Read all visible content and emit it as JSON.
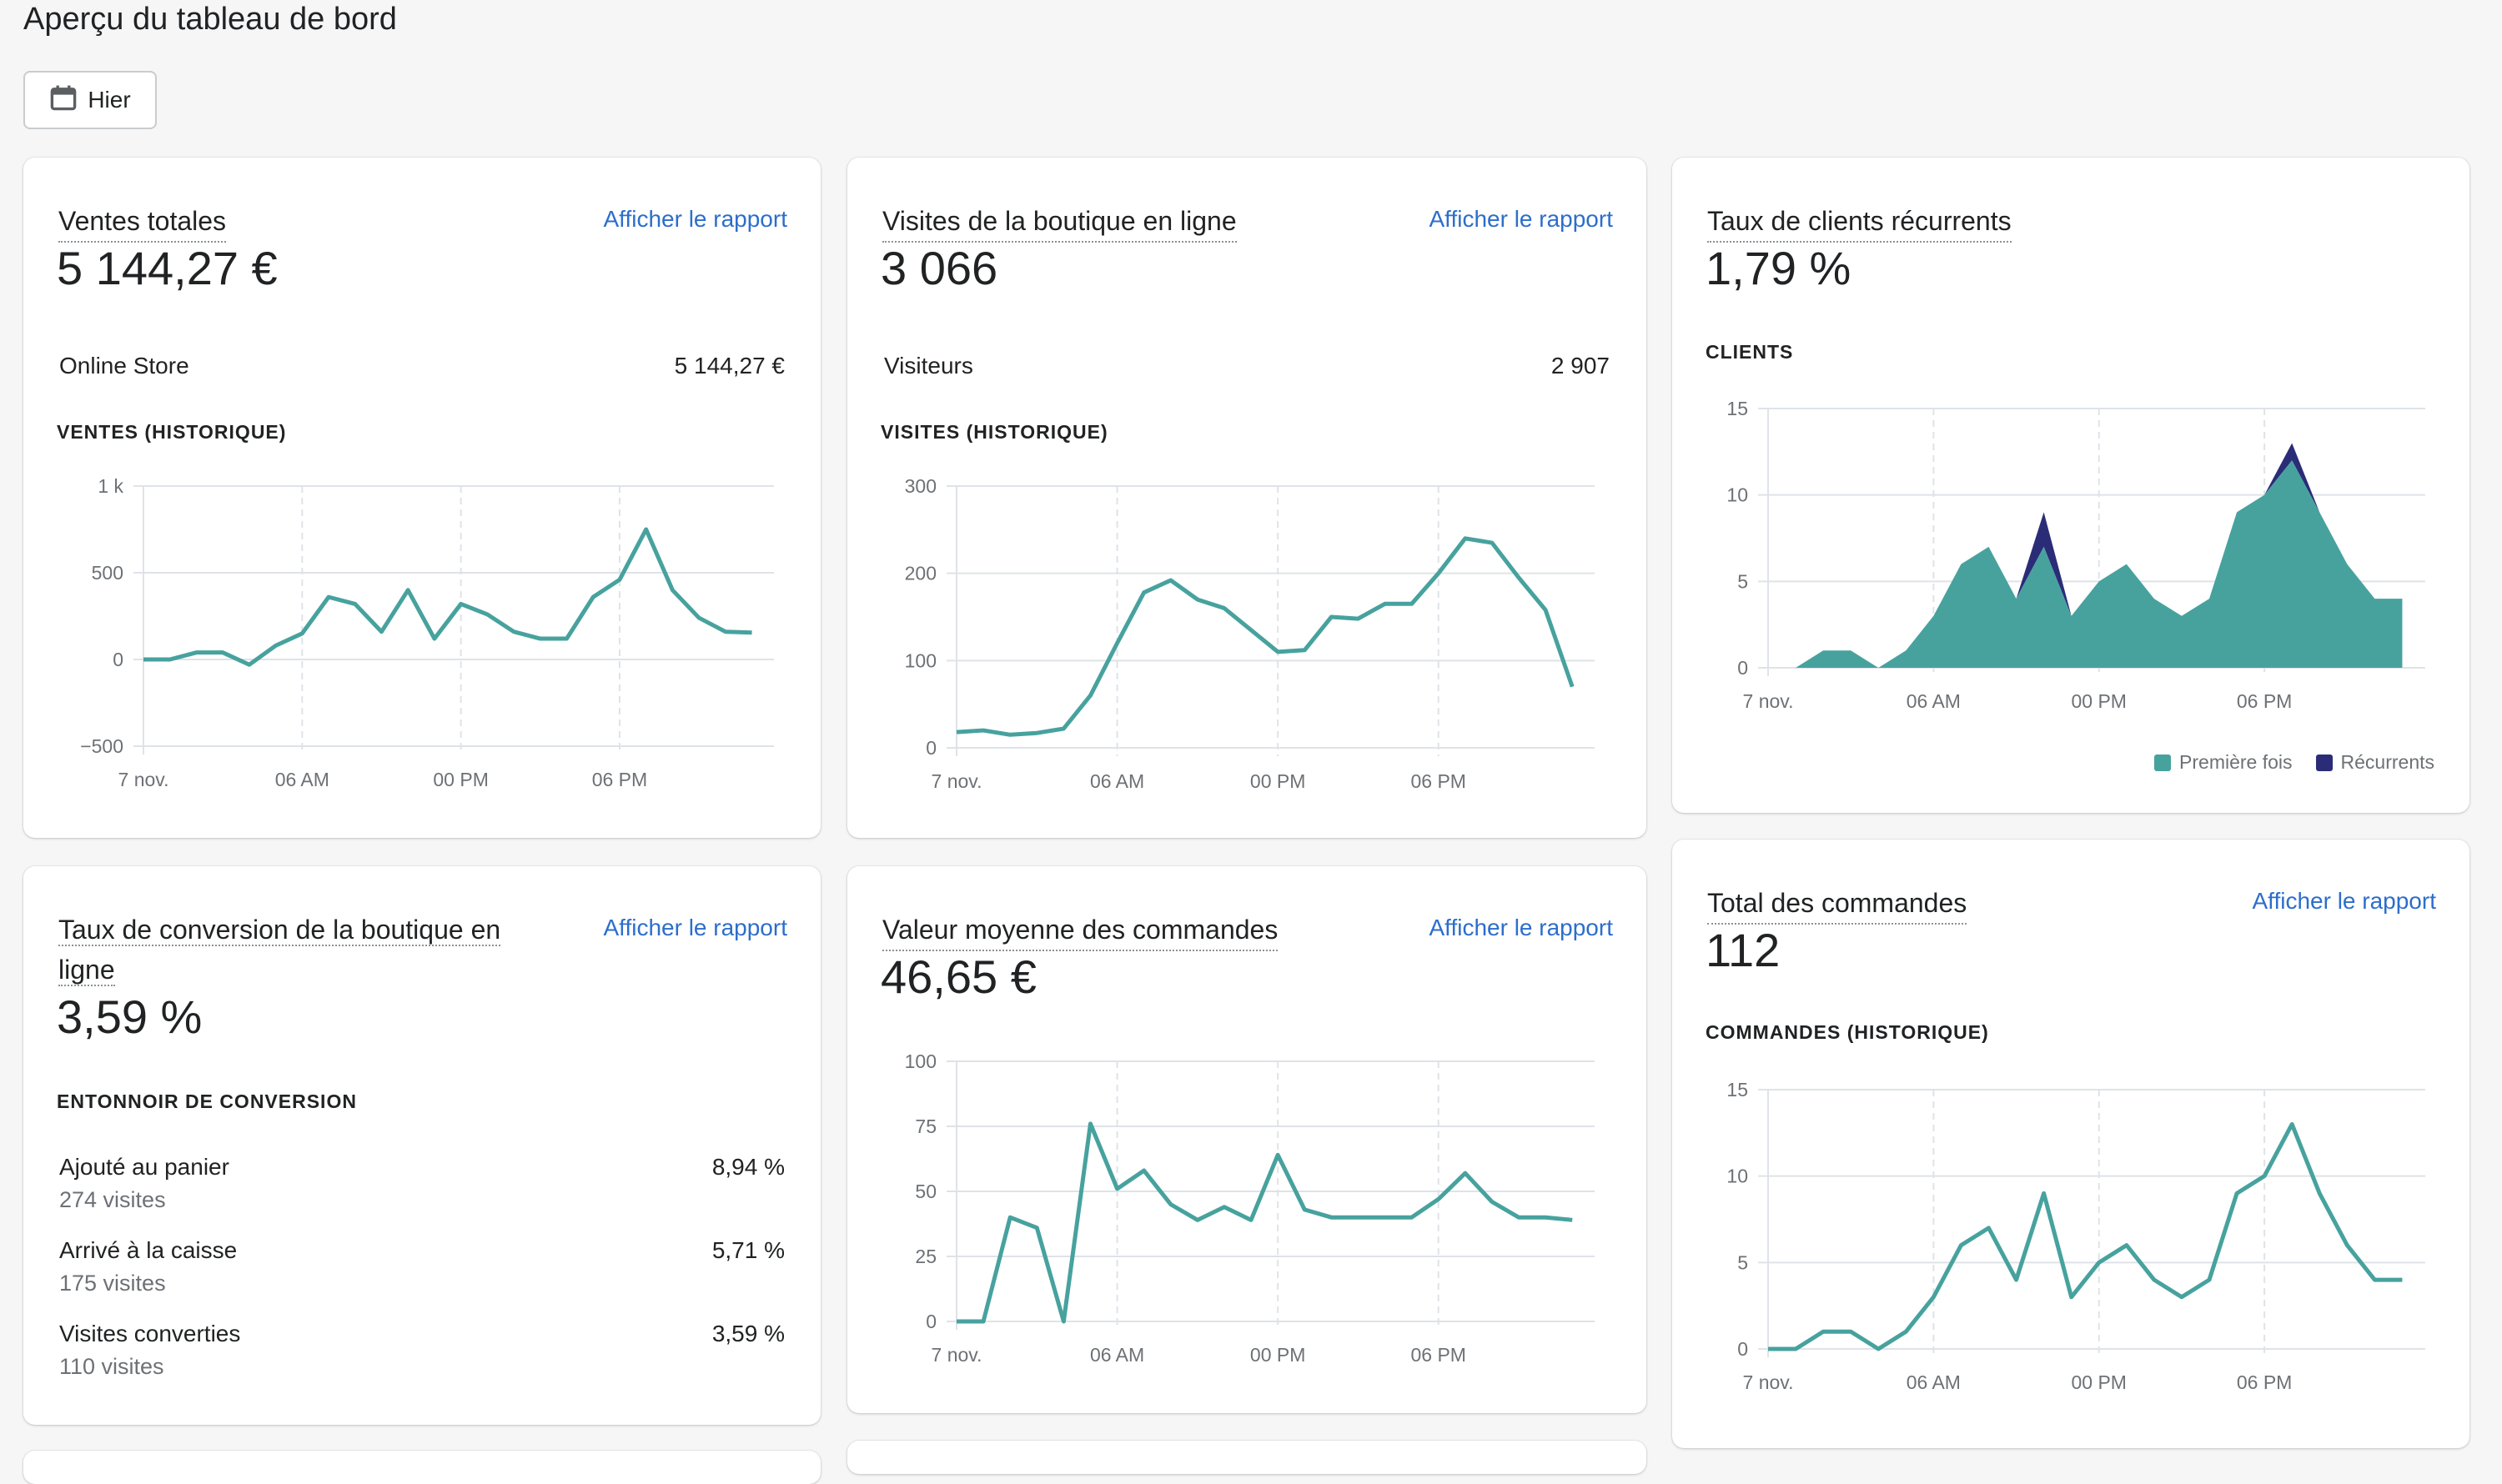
{
  "page": {
    "title": "Aperçu du tableau de bord"
  },
  "date_filter": {
    "label": "Hier",
    "icon": "calendar-icon"
  },
  "colors": {
    "line": "#47a29e",
    "area": "#47a29e",
    "returning": "#2b2c77",
    "grid": "#dfe3e8",
    "link": "#2c6ecb"
  },
  "x_tick_labels": [
    "7 nov.",
    "06 AM",
    "00 PM",
    "06 PM"
  ],
  "cards": {
    "sales": {
      "title": "Ventes totales",
      "link": "Afficher le rapport",
      "value": "5 144,27 €",
      "row_label": "Online Store",
      "row_value": "5 144,27 €",
      "section": "VENTES (HISTORIQUE)"
    },
    "visits": {
      "title": "Visites de la boutique en ligne",
      "link": "Afficher le rapport",
      "value": "3 066",
      "row_label": "Visiteurs",
      "row_value": "2 907",
      "section": "VISITES (HISTORIQUE)"
    },
    "returning": {
      "title": "Taux de clients récurrents",
      "value": "1,79 %",
      "section": "CLIENTS",
      "legend": [
        {
          "label": "Première fois",
          "color": "#47a29e"
        },
        {
          "label": "Récurrents",
          "color": "#2b2c77"
        }
      ]
    },
    "conversion": {
      "title_line1": "Taux de conversion de la boutique en",
      "title_line2": "ligne",
      "link": "Afficher le rapport",
      "value": "3,59 %",
      "section": "ENTONNOIR DE CONVERSION",
      "funnel": [
        {
          "label": "Ajouté au panier",
          "sub": "274 visites",
          "value": "8,94 %"
        },
        {
          "label": "Arrivé à la caisse",
          "sub": "175 visites",
          "value": "5,71 %"
        },
        {
          "label": "Visites converties",
          "sub": "110 visites",
          "value": "3,59 %"
        }
      ]
    },
    "aov": {
      "title": "Valeur moyenne des commandes",
      "link": "Afficher le rapport",
      "value": "46,65 €"
    },
    "orders": {
      "title": "Total des commandes",
      "link": "Afficher le rapport",
      "value": "112",
      "section": "COMMANDES (HISTORIQUE)"
    }
  },
  "chart_data": [
    {
      "id": "sales",
      "type": "line",
      "xlabel": "",
      "ylabel": "",
      "x": [
        "7 nov.",
        "",
        "",
        "",
        "",
        "",
        "06 AM",
        "",
        "",
        "",
        "",
        "",
        "00 PM",
        "",
        "",
        "",
        "",
        "",
        "06 PM",
        "",
        "",
        "",
        "",
        ""
      ],
      "x_tick_labels": [
        "7 nov.",
        "06 AM",
        "00 PM",
        "06 PM"
      ],
      "y_tick_labels": [
        "1 k",
        "500",
        "0",
        "−500"
      ],
      "ylim": [
        -500,
        1000
      ],
      "yticks": [
        1000,
        500,
        0,
        -500
      ],
      "values": [
        0,
        0,
        40,
        40,
        -30,
        80,
        150,
        360,
        320,
        160,
        400,
        120,
        320,
        260,
        160,
        120,
        120,
        360,
        460,
        750,
        400,
        240,
        160,
        155
      ]
    },
    {
      "id": "visits",
      "type": "line",
      "xlabel": "",
      "ylabel": "",
      "x_tick_labels": [
        "7 nov.",
        "06 AM",
        "00 PM",
        "06 PM"
      ],
      "y_tick_labels": [
        "300",
        "200",
        "100",
        "0"
      ],
      "ylim": [
        0,
        300
      ],
      "yticks": [
        300,
        200,
        100,
        0
      ],
      "values": [
        18,
        20,
        15,
        17,
        22,
        60,
        120,
        178,
        192,
        170,
        160,
        135,
        110,
        112,
        150,
        148,
        165,
        165,
        200,
        240,
        235,
        195,
        158,
        70
      ]
    },
    {
      "id": "returning",
      "type": "area",
      "xlabel": "",
      "ylabel": "",
      "x_tick_labels": [
        "7 nov.",
        "06 AM",
        "00 PM",
        "06 PM"
      ],
      "y_tick_labels": [
        "15",
        "10",
        "5",
        "0"
      ],
      "ylim": [
        0,
        15
      ],
      "yticks": [
        15,
        10,
        5,
        0
      ],
      "series": [
        {
          "name": "Première fois",
          "values": [
            0,
            0,
            1,
            1,
            0,
            1,
            3,
            6,
            7,
            4,
            7,
            3,
            5,
            6,
            4,
            3,
            4,
            9,
            10,
            12,
            9,
            6,
            4,
            4
          ]
        },
        {
          "name": "Récurrents",
          "values": [
            0,
            0,
            0,
            0,
            0,
            0,
            0,
            0,
            0,
            0,
            2,
            0,
            0,
            0,
            0,
            0,
            0,
            0,
            0,
            1,
            0,
            0,
            0,
            0
          ]
        }
      ]
    },
    {
      "id": "aov",
      "type": "line",
      "xlabel": "",
      "ylabel": "",
      "x_tick_labels": [
        "7 nov.",
        "06 AM",
        "00 PM",
        "06 PM"
      ],
      "y_tick_labels": [
        "100",
        "75",
        "50",
        "25",
        "0"
      ],
      "ylim": [
        0,
        100
      ],
      "yticks": [
        100,
        75,
        50,
        25,
        0
      ],
      "values": [
        0,
        0,
        40,
        36,
        0,
        76,
        51,
        58,
        45,
        39,
        44,
        39,
        64,
        43,
        40,
        40,
        40,
        40,
        47,
        57,
        46,
        40,
        40,
        39
      ]
    },
    {
      "id": "orders",
      "type": "line",
      "xlabel": "",
      "ylabel": "",
      "x_tick_labels": [
        "7 nov.",
        "06 AM",
        "00 PM",
        "06 PM"
      ],
      "y_tick_labels": [
        "15",
        "10",
        "5",
        "0"
      ],
      "ylim": [
        0,
        15
      ],
      "yticks": [
        15,
        10,
        5,
        0
      ],
      "values": [
        0,
        0,
        1,
        1,
        0,
        1,
        3,
        6,
        7,
        4,
        9,
        3,
        5,
        6,
        4,
        3,
        4,
        9,
        10,
        13,
        9,
        6,
        4,
        4
      ]
    }
  ]
}
